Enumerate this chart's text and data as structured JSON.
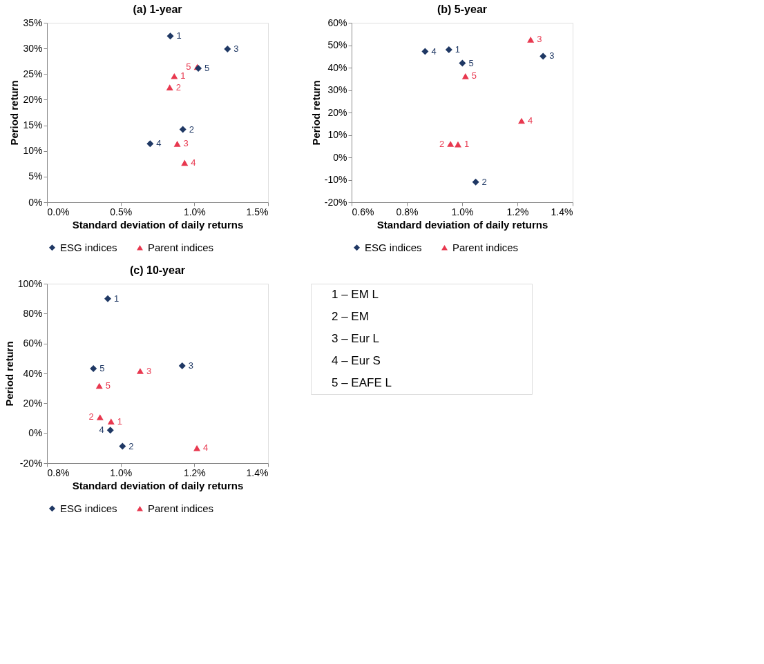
{
  "chart_data": [
    {
      "type": "scatter",
      "title": "(a)   1-year",
      "xlabel": "Standard deviation of daily returns",
      "ylabel": "Period return",
      "legend": "bottom",
      "grid": false,
      "xlim": [
        0,
        1.5
      ],
      "xticks": [
        {
          "value": 0,
          "label": "0.0%"
        },
        {
          "value": 0.5,
          "label": "0.5%"
        },
        {
          "value": 1.0,
          "label": "1.0%"
        },
        {
          "value": 1.5,
          "label": "1.5%"
        }
      ],
      "ylim": [
        0,
        35
      ],
      "yticks": [
        {
          "value": 0,
          "label": "0%"
        },
        {
          "value": 5,
          "label": "5%"
        },
        {
          "value": 10,
          "label": "10%"
        },
        {
          "value": 15,
          "label": "15%"
        },
        {
          "value": 20,
          "label": "20%"
        },
        {
          "value": 25,
          "label": "25%"
        },
        {
          "value": 30,
          "label": "30%"
        },
        {
          "value": 35,
          "label": "35%"
        }
      ],
      "series": [
        {
          "name": "ESG indices",
          "color": "#1f3864",
          "marker": "diamond",
          "x": [
            0.837,
            0.922,
            1.225,
            0.7,
            1.027
          ],
          "values": [
            32.4,
            14.2,
            29.9,
            11.4,
            26.1
          ]
        },
        {
          "name": "Parent indices",
          "color": "#e8384f",
          "marker": "triangle",
          "x": [
            0.864,
            0.833,
            0.884,
            0.934,
            1.02
          ],
          "values": [
            24.6,
            22.4,
            11.4,
            7.7,
            26.4
          ]
        }
      ],
      "annotations": [
        {
          "text": "1",
          "x": 0.837,
          "y": 32.4
        },
        {
          "text": "2",
          "x": 0.922,
          "y": 14.2
        },
        {
          "text": "3",
          "x": 1.225,
          "y": 29.9
        },
        {
          "text": "4",
          "x": 0.7,
          "y": 11.4
        },
        {
          "text": "5",
          "x": 1.027,
          "y": 26.1
        },
        {
          "text": "1",
          "x": 0.864,
          "y": 24.6
        },
        {
          "text": "2",
          "x": 0.833,
          "y": 22.4
        },
        {
          "text": "3",
          "x": 0.884,
          "y": 11.4
        },
        {
          "text": "4",
          "x": 0.934,
          "y": 7.7
        },
        {
          "text": "5",
          "x": 1.02,
          "y": 26.4
        }
      ]
    },
    {
      "type": "scatter",
      "title": "(b)   5-year",
      "xlabel": "Standard deviation of daily returns",
      "ylabel": "Period return",
      "legend": "bottom",
      "grid": false,
      "xlim": [
        0.6,
        1.4
      ],
      "xticks": [
        {
          "value": 0.6,
          "label": "0.6%"
        },
        {
          "value": 0.8,
          "label": "0.8%"
        },
        {
          "value": 1.0,
          "label": "1.0%"
        },
        {
          "value": 1.2,
          "label": "1.2%"
        },
        {
          "value": 1.4,
          "label": "1.4%"
        }
      ],
      "ylim": [
        -20,
        60
      ],
      "yticks": [
        {
          "value": -20,
          "label": "-20%"
        },
        {
          "value": -10,
          "label": "-10%"
        },
        {
          "value": 0,
          "label": "0%"
        },
        {
          "value": 10,
          "label": "10%"
        },
        {
          "value": 20,
          "label": "20%"
        },
        {
          "value": 30,
          "label": "30%"
        },
        {
          "value": 40,
          "label": "40%"
        },
        {
          "value": 50,
          "label": "50%"
        },
        {
          "value": 60,
          "label": "60%"
        }
      ],
      "series": [
        {
          "name": "ESG indices",
          "color": "#1f3864",
          "marker": "diamond",
          "x": [
            0.952,
            1.049,
            1.293,
            0.866,
            1.001
          ],
          "values": [
            48.0,
            -11.0,
            45.1,
            47.2,
            42.0
          ]
        },
        {
          "name": "Parent indices",
          "color": "#e8384f",
          "marker": "triangle",
          "x": [
            0.985,
            0.958,
            1.248,
            1.215,
            1.012
          ],
          "values": [
            5.8,
            6.0,
            52.5,
            16.3,
            36.2
          ]
        }
      ],
      "annotations": [
        {
          "text": "1",
          "x": 0.952,
          "y": 48.0
        },
        {
          "text": "2",
          "x": 1.049,
          "y": -11.0
        },
        {
          "text": "3",
          "x": 1.293,
          "y": 45.1
        },
        {
          "text": "4",
          "x": 0.866,
          "y": 47.2
        },
        {
          "text": "5",
          "x": 1.001,
          "y": 42.0
        },
        {
          "text": "1",
          "x": 0.985,
          "y": 5.8
        },
        {
          "text": "2",
          "x": 0.958,
          "y": 6.0
        },
        {
          "text": "3",
          "x": 1.248,
          "y": 52.5
        },
        {
          "text": "4",
          "x": 1.215,
          "y": 16.3
        },
        {
          "text": "5",
          "x": 1.012,
          "y": 36.2
        }
      ]
    },
    {
      "type": "scatter",
      "title": "(c)   10-year",
      "xlabel": "Standard deviation of daily returns",
      "ylabel": "Period return",
      "legend": "bottom",
      "grid": false,
      "xlim": [
        0.8,
        1.4
      ],
      "xticks": [
        {
          "value": 0.8,
          "label": "0.8%"
        },
        {
          "value": 1.0,
          "label": "1.0%"
        },
        {
          "value": 1.2,
          "label": "1.2%"
        },
        {
          "value": 1.4,
          "label": "1.4%"
        }
      ],
      "ylim": [
        -20,
        100
      ],
      "yticks": [
        {
          "value": -20,
          "label": "-20%"
        },
        {
          "value": 0,
          "label": "0%"
        },
        {
          "value": 20,
          "label": "20%"
        },
        {
          "value": 40,
          "label": "40%"
        },
        {
          "value": 60,
          "label": "60%"
        },
        {
          "value": 80,
          "label": "80%"
        },
        {
          "value": 100,
          "label": "100%"
        }
      ],
      "series": [
        {
          "name": "ESG indices",
          "color": "#1f3864",
          "marker": "diamond",
          "x": [
            0.965,
            1.005,
            1.167,
            0.972,
            0.926
          ],
          "values": [
            90.0,
            -8.7,
            45.1,
            2.0,
            43.2
          ]
        },
        {
          "name": "Parent indices",
          "color": "#e8384f",
          "marker": "triangle",
          "x": [
            0.974,
            0.944,
            1.053,
            1.207,
            0.942
          ],
          "values": [
            7.9,
            10.7,
            41.6,
            -9.9,
            31.7
          ]
        }
      ],
      "annotations": [
        {
          "text": "1",
          "x": 0.965,
          "y": 90.0
        },
        {
          "text": "2",
          "x": 1.005,
          "y": -8.7
        },
        {
          "text": "3",
          "x": 1.167,
          "y": 45.1
        },
        {
          "text": "4",
          "x": 0.972,
          "y": 2.0
        },
        {
          "text": "5",
          "x": 0.926,
          "y": 43.2
        },
        {
          "text": "1",
          "x": 0.974,
          "y": 7.9
        },
        {
          "text": "2",
          "x": 0.944,
          "y": 10.7
        },
        {
          "text": "3",
          "x": 1.053,
          "y": 41.6
        },
        {
          "text": "4",
          "x": 1.207,
          "y": -9.9
        },
        {
          "text": "5",
          "x": 0.942,
          "y": 31.7
        }
      ]
    },
    {
      "type": "other",
      "annotations": [
        "1 – EM L",
        "2 – EM",
        "3 – Eur L",
        "4 – Eur S",
        "5 – EAFE L"
      ]
    }
  ]
}
